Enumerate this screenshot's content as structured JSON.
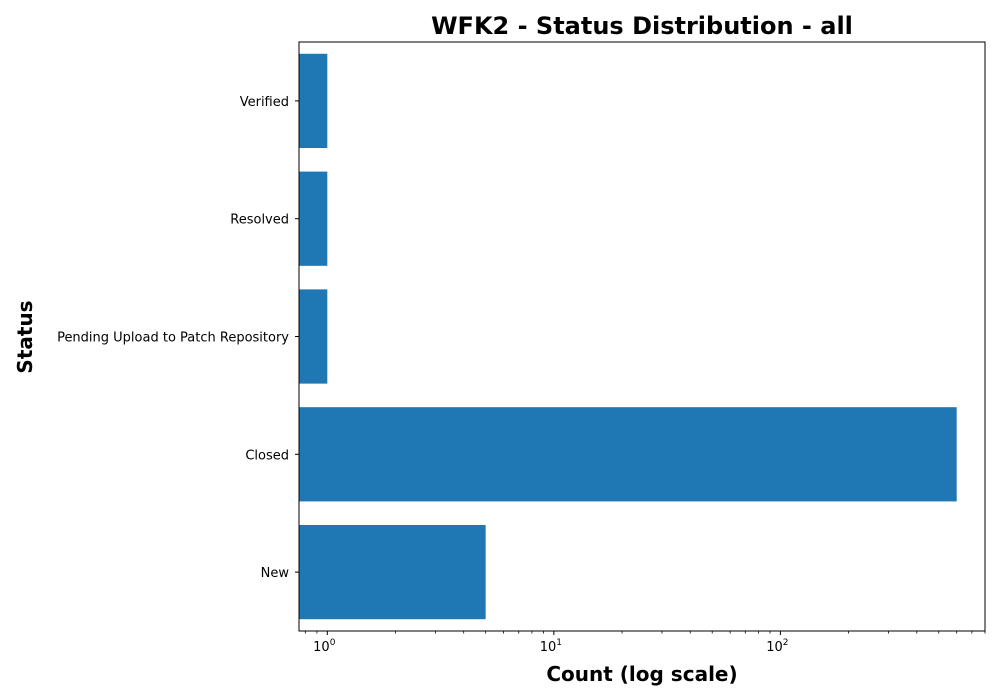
{
  "chart_data": {
    "type": "bar",
    "orientation": "horizontal",
    "title": "WFK2 - Status Distribution - all",
    "xlabel": "Count (log scale)",
    "ylabel": "Status",
    "x_scale": "log",
    "xlim": [
      0.75,
      800
    ],
    "categories": [
      "New",
      "Closed",
      "Pending Upload to Patch Repository",
      "Resolved",
      "Verified"
    ],
    "values": [
      5,
      600,
      1,
      1,
      1
    ],
    "x_major_ticks": [
      1,
      10,
      100
    ],
    "x_tick_labels": [
      {
        "base": "10",
        "exp": "0"
      },
      {
        "base": "10",
        "exp": "1"
      },
      {
        "base": "10",
        "exp": "2"
      }
    ],
    "bar_color": "#1f77b4",
    "grid": false,
    "legend": "none"
  }
}
